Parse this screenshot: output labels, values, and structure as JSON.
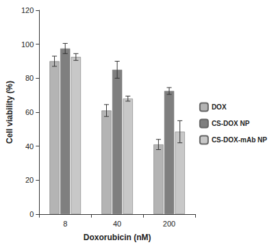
{
  "chart_data": {
    "type": "bar",
    "x_label": "Doxorubicin (nM)",
    "y_label": "Cell viability (%)",
    "categories": [
      "8",
      "40",
      "200"
    ],
    "series": [
      {
        "name": "DOX",
        "color": "#b4b4b4",
        "values": [
          90,
          61,
          41
        ],
        "errors": [
          3,
          3.5,
          3
        ]
      },
      {
        "name": "CS-DOX NP",
        "color": "#7f7f7f",
        "values": [
          97.5,
          85,
          72.5
        ],
        "errors": [
          3,
          5,
          2
        ]
      },
      {
        "name": "CS-DOX-mAb NP",
        "color": "#c8c8c8",
        "values": [
          92.5,
          68,
          48.5
        ],
        "errors": [
          2,
          1.5,
          6.5
        ]
      }
    ],
    "ylim": [
      0,
      120
    ],
    "yticks": [
      0,
      20,
      40,
      60,
      80,
      100,
      120
    ],
    "grid": false,
    "legend": "right"
  }
}
